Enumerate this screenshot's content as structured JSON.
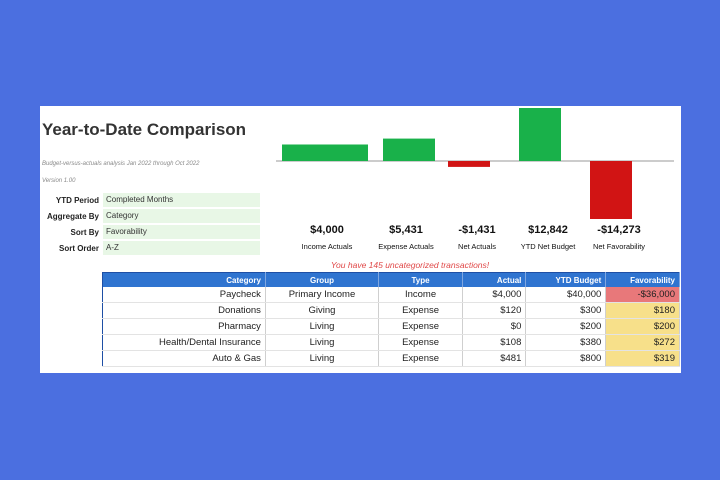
{
  "report": {
    "title": "Year-to-Date Comparison",
    "subtitle": "Budget-versus-actuals analysis Jan 2022 through Oct 2022",
    "version": "Version 1.00"
  },
  "settings": [
    {
      "label": "YTD Period",
      "value": "Completed Months"
    },
    {
      "label": "Aggregate By",
      "value": "Category"
    },
    {
      "label": "Sort By",
      "value": "Favorability"
    },
    {
      "label": "Sort Order",
      "value": "A-Z"
    }
  ],
  "kpis": [
    {
      "value": "$4,000",
      "label": "Income Actuals",
      "amount": 4000,
      "color": "#19b14a"
    },
    {
      "value": "$5,431",
      "label": "Expense Actuals",
      "amount": 5431,
      "color": "#19b14a"
    },
    {
      "value": "-$1,431",
      "label": "Net Actuals",
      "amount": -1431,
      "color": "#d11414"
    },
    {
      "value": "$12,842",
      "label": "YTD Net Budget",
      "amount": 12842,
      "color": "#19b14a"
    },
    {
      "value": "-$14,273",
      "label": "Net Favorability",
      "amount": -14273,
      "color": "#d11414"
    }
  ],
  "notice": "You have 145 uncategorized transactions!",
  "table": {
    "headers": [
      "Category",
      "Group",
      "Type",
      "Actual",
      "YTD Budget",
      "Favorability"
    ],
    "rows": [
      {
        "category": "Paycheck",
        "group": "Primary Income",
        "type": "Income",
        "actual": "$4,000",
        "budget": "$40,000",
        "favorability": "-$36,000",
        "status": "negative"
      },
      {
        "category": "Donations",
        "group": "Giving",
        "type": "Expense",
        "actual": "$120",
        "budget": "$300",
        "favorability": "$180",
        "status": "positive"
      },
      {
        "category": "Pharmacy",
        "group": "Living",
        "type": "Expense",
        "actual": "$0",
        "budget": "$200",
        "favorability": "$200",
        "status": "positive"
      },
      {
        "category": "Health/Dental Insurance",
        "group": "Living",
        "type": "Expense",
        "actual": "$108",
        "budget": "$380",
        "favorability": "$272",
        "status": "positive"
      },
      {
        "category": "Auto & Gas",
        "group": "Living",
        "type": "Expense",
        "actual": "$481",
        "budget": "$800",
        "favorability": "$319",
        "status": "positive"
      }
    ]
  },
  "colors": {
    "header_blue": "#2f74d0",
    "positive_fill": "#f7e08a",
    "negative_fill": "#e8787a"
  }
}
